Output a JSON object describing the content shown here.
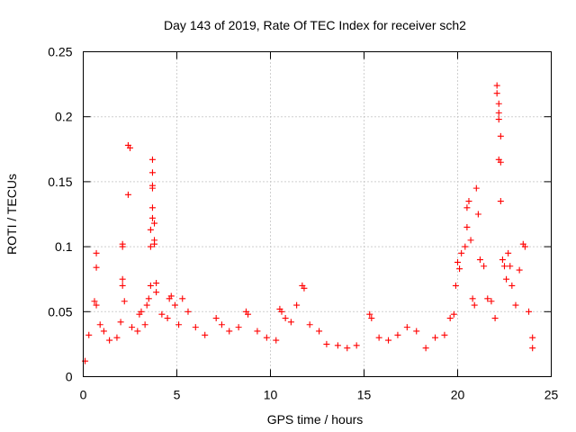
{
  "chart_data": {
    "type": "scatter",
    "title": "Day 143 of 2019, Rate Of TEC Index for receiver sch2",
    "xlabel": "GPS time / hours",
    "ylabel": "ROTI / TECUs",
    "xlim": [
      0,
      25
    ],
    "ylim": [
      0,
      0.25
    ],
    "x_ticks": [
      0,
      5,
      10,
      15,
      20,
      25
    ],
    "x_tick_labels": [
      "0",
      "5",
      "10",
      "15",
      "20",
      "25"
    ],
    "y_ticks": [
      0,
      0.05,
      0.1,
      0.15,
      0.2,
      0.25
    ],
    "y_tick_labels": [
      "0",
      "0.05",
      "0.1",
      "0.15",
      "0.2",
      "0.25"
    ],
    "grid": true,
    "marker": "plus",
    "marker_color": "#ff0000",
    "series": [
      {
        "points": [
          [
            0.1,
            0.012
          ],
          [
            0.3,
            0.032
          ],
          [
            0.6,
            0.058
          ],
          [
            0.7,
            0.055
          ],
          [
            0.7,
            0.095
          ],
          [
            0.7,
            0.084
          ],
          [
            0.9,
            0.04
          ],
          [
            1.1,
            0.035
          ],
          [
            1.4,
            0.028
          ],
          [
            1.8,
            0.03
          ],
          [
            2.0,
            0.042
          ],
          [
            2.1,
            0.1
          ],
          [
            2.1,
            0.102
          ],
          [
            2.1,
            0.07
          ],
          [
            2.1,
            0.075
          ],
          [
            2.2,
            0.058
          ],
          [
            2.4,
            0.178
          ],
          [
            2.5,
            0.176
          ],
          [
            2.4,
            0.14
          ],
          [
            2.6,
            0.038
          ],
          [
            2.9,
            0.035
          ],
          [
            3.0,
            0.048
          ],
          [
            3.1,
            0.05
          ],
          [
            3.3,
            0.04
          ],
          [
            3.4,
            0.055
          ],
          [
            3.5,
            0.06
          ],
          [
            3.6,
            0.07
          ],
          [
            3.6,
            0.1
          ],
          [
            3.6,
            0.113
          ],
          [
            3.7,
            0.122
          ],
          [
            3.7,
            0.13
          ],
          [
            3.7,
            0.145
          ],
          [
            3.7,
            0.147
          ],
          [
            3.7,
            0.157
          ],
          [
            3.7,
            0.167
          ],
          [
            3.8,
            0.118
          ],
          [
            3.8,
            0.105
          ],
          [
            3.8,
            0.102
          ],
          [
            3.9,
            0.072
          ],
          [
            3.9,
            0.065
          ],
          [
            4.2,
            0.048
          ],
          [
            4.5,
            0.045
          ],
          [
            4.6,
            0.06
          ],
          [
            4.7,
            0.062
          ],
          [
            4.9,
            0.055
          ],
          [
            5.1,
            0.04
          ],
          [
            5.3,
            0.06
          ],
          [
            5.6,
            0.05
          ],
          [
            6.0,
            0.038
          ],
          [
            6.5,
            0.032
          ],
          [
            7.1,
            0.045
          ],
          [
            7.4,
            0.04
          ],
          [
            7.8,
            0.035
          ],
          [
            8.3,
            0.038
          ],
          [
            8.7,
            0.05
          ],
          [
            8.8,
            0.048
          ],
          [
            9.3,
            0.035
          ],
          [
            9.8,
            0.03
          ],
          [
            10.3,
            0.028
          ],
          [
            10.5,
            0.052
          ],
          [
            10.6,
            0.05
          ],
          [
            10.8,
            0.045
          ],
          [
            11.1,
            0.042
          ],
          [
            11.4,
            0.055
          ],
          [
            11.7,
            0.07
          ],
          [
            11.8,
            0.068
          ],
          [
            12.1,
            0.04
          ],
          [
            12.6,
            0.035
          ],
          [
            13.0,
            0.025
          ],
          [
            13.6,
            0.024
          ],
          [
            14.1,
            0.022
          ],
          [
            14.6,
            0.024
          ],
          [
            15.3,
            0.048
          ],
          [
            15.4,
            0.045
          ],
          [
            15.8,
            0.03
          ],
          [
            16.3,
            0.028
          ],
          [
            16.8,
            0.032
          ],
          [
            17.3,
            0.038
          ],
          [
            17.8,
            0.035
          ],
          [
            18.3,
            0.022
          ],
          [
            18.8,
            0.03
          ],
          [
            19.3,
            0.032
          ],
          [
            19.6,
            0.045
          ],
          [
            19.8,
            0.048
          ],
          [
            19.9,
            0.07
          ],
          [
            20.0,
            0.088
          ],
          [
            20.1,
            0.083
          ],
          [
            20.2,
            0.095
          ],
          [
            20.4,
            0.1
          ],
          [
            20.5,
            0.115
          ],
          [
            20.5,
            0.13
          ],
          [
            20.6,
            0.135
          ],
          [
            20.7,
            0.105
          ],
          [
            20.8,
            0.06
          ],
          [
            20.9,
            0.055
          ],
          [
            21.0,
            0.145
          ],
          [
            21.1,
            0.125
          ],
          [
            21.2,
            0.09
          ],
          [
            21.4,
            0.085
          ],
          [
            21.6,
            0.06
          ],
          [
            21.8,
            0.058
          ],
          [
            22.0,
            0.045
          ],
          [
            22.1,
            0.224
          ],
          [
            22.1,
            0.218
          ],
          [
            22.2,
            0.21
          ],
          [
            22.2,
            0.203
          ],
          [
            22.2,
            0.198
          ],
          [
            22.3,
            0.185
          ],
          [
            22.2,
            0.167
          ],
          [
            22.3,
            0.165
          ],
          [
            22.3,
            0.135
          ],
          [
            22.4,
            0.09
          ],
          [
            22.5,
            0.085
          ],
          [
            22.6,
            0.075
          ],
          [
            22.7,
            0.095
          ],
          [
            22.8,
            0.085
          ],
          [
            22.9,
            0.07
          ],
          [
            23.1,
            0.055
          ],
          [
            23.3,
            0.082
          ],
          [
            23.5,
            0.102
          ],
          [
            23.6,
            0.1
          ],
          [
            23.8,
            0.05
          ],
          [
            24.0,
            0.03
          ],
          [
            24.0,
            0.022
          ]
        ]
      }
    ]
  }
}
